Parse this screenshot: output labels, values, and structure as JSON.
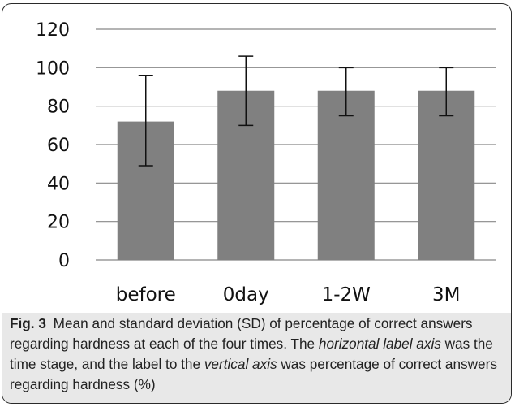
{
  "chart_data": {
    "type": "bar",
    "categories": [
      "before",
      "0day",
      "1-2W",
      "3M"
    ],
    "values": [
      72,
      88,
      88,
      88
    ],
    "error_low": [
      49,
      70,
      75,
      75
    ],
    "error_high": [
      96,
      106,
      100,
      100
    ],
    "ylim": [
      0,
      120
    ],
    "yticks": [
      "0",
      "20",
      "40",
      "60",
      "80",
      "100",
      "120"
    ],
    "ytick_values": [
      0,
      20,
      40,
      60,
      80,
      100,
      120
    ],
    "grid": true,
    "bar_color": "#808080",
    "gridline_color": "#888888"
  },
  "caption": {
    "label": "Fig. 3",
    "part1": "Mean and standard deviation (SD) of percentage of correct answers regarding hardness at each of the four times. The ",
    "italic1": "horizontal label axis",
    "part2": " was the time stage, and the label to the ",
    "italic2": "vertical axis",
    "part3": " was percentage of correct answers regarding hardness (%)"
  },
  "colors": {
    "caption_background": "#e8e8e8",
    "frame": "#2a2a2a"
  }
}
